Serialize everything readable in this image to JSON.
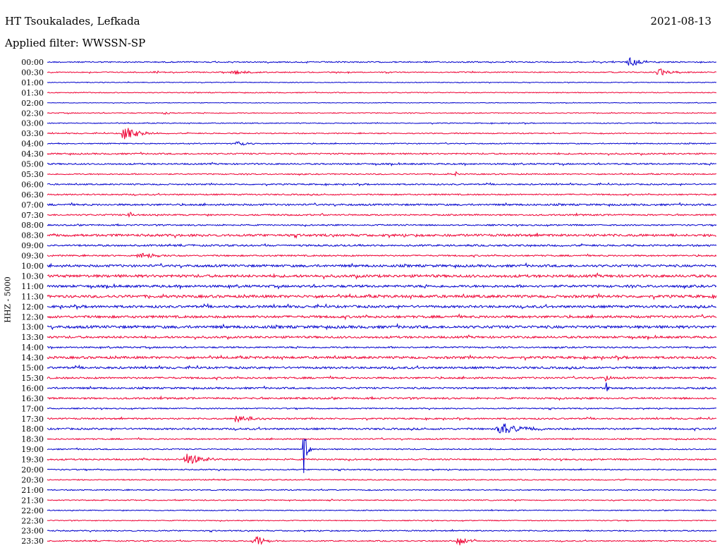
{
  "header": {
    "station": "HT Tsoukalades, Lefkada",
    "date": "2021-08-13",
    "filter": "Applied filter: WWSSN-SP"
  },
  "channel_label": "HHZ - 5000",
  "colors": {
    "odd_trace": "#0000cc",
    "even_trace": "#ee0033",
    "text": "#000000"
  },
  "chart_data": {
    "type": "line",
    "title": "",
    "rows": [
      "00:00",
      "00:30",
      "01:00",
      "01:30",
      "02:00",
      "02:30",
      "03:00",
      "03:30",
      "04:00",
      "04:30",
      "05:00",
      "05:30",
      "06:00",
      "06:30",
      "07:00",
      "07:30",
      "08:00",
      "08:30",
      "09:00",
      "09:30",
      "10:00",
      "10:30",
      "11:00",
      "11:30",
      "12:00",
      "12:30",
      "13:00",
      "13:30",
      "14:00",
      "14:30",
      "15:00",
      "15:30",
      "16:00",
      "16:30",
      "17:00",
      "17:30",
      "18:00",
      "18:30",
      "19:00",
      "19:30",
      "20:00",
      "20:30",
      "21:00",
      "21:30",
      "22:00",
      "22:30",
      "23:00",
      "23:30"
    ],
    "row_noise": [
      0.8,
      0.7,
      0.5,
      0.6,
      0.4,
      0.6,
      0.6,
      0.7,
      0.7,
      1.0,
      1.0,
      0.8,
      0.9,
      0.9,
      1.2,
      1.0,
      0.9,
      1.6,
      1.2,
      1.0,
      1.6,
      1.8,
      1.6,
      1.8,
      1.6,
      1.6,
      1.8,
      1.4,
      1.0,
      1.6,
      1.4,
      1.2,
      1.2,
      1.2,
      0.8,
      1.0,
      1.2,
      0.9,
      0.8,
      1.0,
      0.8,
      0.7,
      0.7,
      0.7,
      0.6,
      0.6,
      0.8,
      0.8
    ],
    "events": [
      {
        "row": 0,
        "x": 0.87,
        "amp": 8,
        "dur": 0.015
      },
      {
        "row": 1,
        "x": 0.915,
        "amp": 7,
        "dur": 0.015
      },
      {
        "row": 1,
        "x": 0.28,
        "amp": 3,
        "dur": 0.02
      },
      {
        "row": 1,
        "x": 0.16,
        "amp": 2,
        "dur": 0.006
      },
      {
        "row": 5,
        "x": 0.175,
        "amp": 2,
        "dur": 0.01
      },
      {
        "row": 7,
        "x": 0.115,
        "amp": 10,
        "dur": 0.02
      },
      {
        "row": 8,
        "x": 0.285,
        "amp": 4,
        "dur": 0.012
      },
      {
        "row": 11,
        "x": 0.61,
        "amp": 5,
        "dur": 0.002
      },
      {
        "row": 15,
        "x": 0.122,
        "amp": 7,
        "dur": 0.003
      },
      {
        "row": 19,
        "x": 0.14,
        "amp": 4,
        "dur": 0.02
      },
      {
        "row": 32,
        "x": 0.835,
        "amp": 8,
        "dur": 0.003
      },
      {
        "row": 31,
        "x": 0.835,
        "amp": 8,
        "dur": 0.004
      },
      {
        "row": 35,
        "x": 0.285,
        "amp": 7,
        "dur": 0.02
      },
      {
        "row": 36,
        "x": 0.68,
        "amp": 8,
        "dur": 0.03
      },
      {
        "row": 38,
        "x": 0.383,
        "amp": 45,
        "dur": 0.004
      },
      {
        "row": 39,
        "x": 0.21,
        "amp": 8,
        "dur": 0.02
      },
      {
        "row": 47,
        "x": 0.31,
        "amp": 10,
        "dur": 0.012
      },
      {
        "row": 47,
        "x": 0.615,
        "amp": 8,
        "dur": 0.012
      }
    ]
  }
}
